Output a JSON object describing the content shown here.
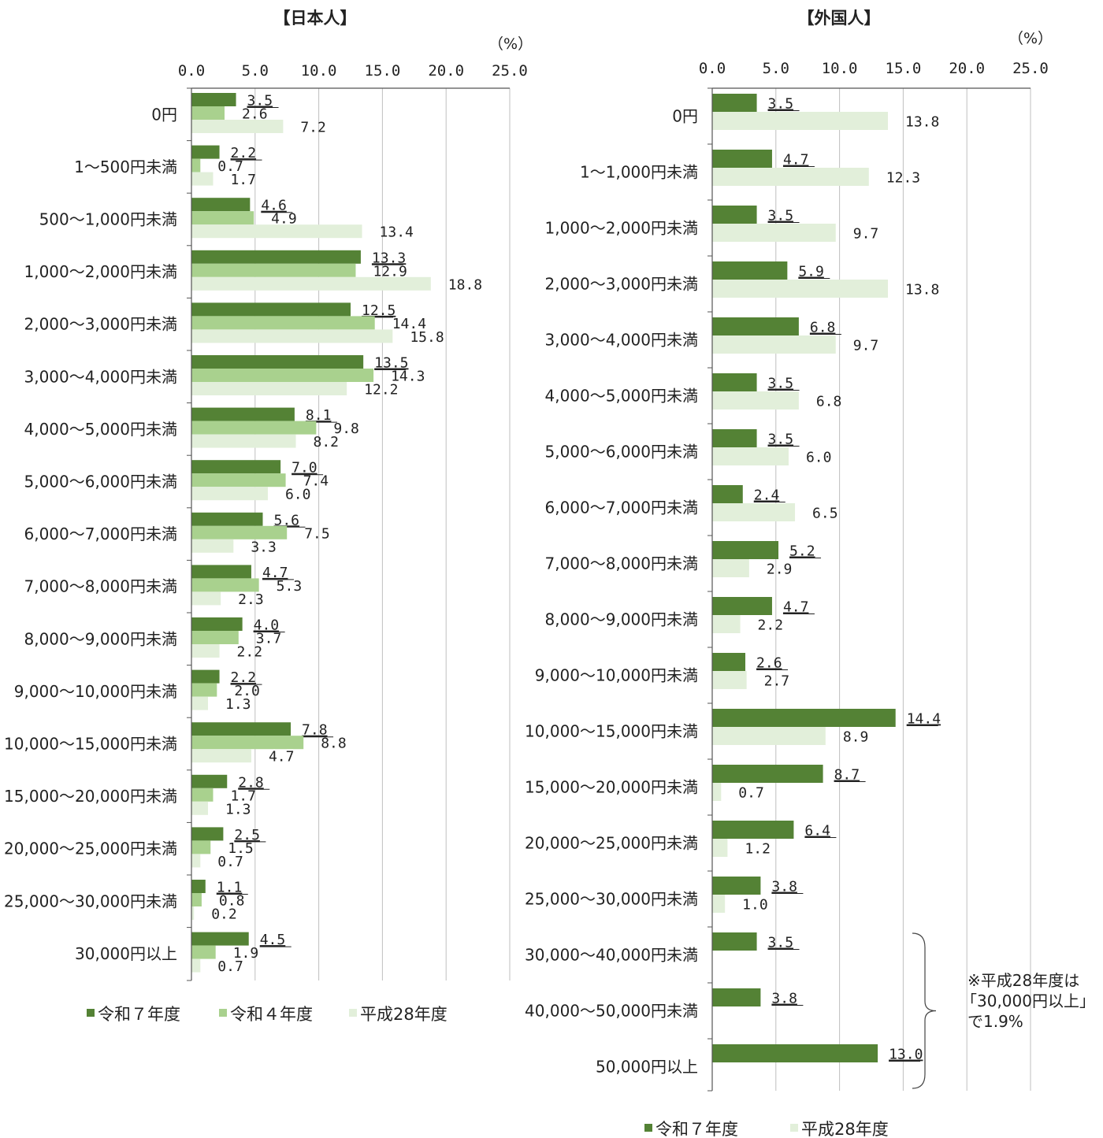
{
  "colors": {
    "r7": "#548235",
    "r4": "#a9d18e",
    "h28": "#e2efda",
    "axis": "#555555",
    "grid": "#bfbfbf"
  },
  "chart_data": [
    {
      "type": "bar",
      "orientation": "horizontal",
      "title": "【日本人】",
      "unit": "（%）",
      "xlim": [
        0,
        25
      ],
      "ticks": [
        "0.0",
        "5.0",
        "10.0",
        "15.0",
        "20.0",
        "25.0"
      ],
      "grid": true,
      "legend_position": "bottom",
      "categories": [
        "0円",
        "1～500円未満",
        "500～1,000円未満",
        "1,000～2,000円未満",
        "2,000～3,000円未満",
        "3,000～4,000円未満",
        "4,000～5,000円未満",
        "5,000～6,000円未満",
        "6,000～7,000円未満",
        "7,000～8,000円未満",
        "8,000～9,000円未満",
        "9,000～10,000円未満",
        "10,000～15,000円未満",
        "15,000～20,000円未満",
        "20,000～25,000円未満",
        "25,000～30,000円未満",
        "30,000円以上"
      ],
      "series": [
        {
          "name": "令和７年度",
          "color_key": "r7",
          "values": [
            3.5,
            2.2,
            4.6,
            13.3,
            12.5,
            13.5,
            8.1,
            7.0,
            5.6,
            4.7,
            4.0,
            2.2,
            7.8,
            2.8,
            2.5,
            1.1,
            4.5
          ],
          "underline": true
        },
        {
          "name": "令和４年度",
          "color_key": "r4",
          "values": [
            2.6,
            0.7,
            4.9,
            12.9,
            14.4,
            14.3,
            9.8,
            7.4,
            7.5,
            5.3,
            3.7,
            2.0,
            8.8,
            1.7,
            1.5,
            0.8,
            1.9
          ]
        },
        {
          "name": "平成28年度",
          "color_key": "h28",
          "values": [
            7.2,
            1.7,
            13.4,
            18.8,
            15.8,
            12.2,
            8.2,
            6.0,
            3.3,
            2.3,
            2.2,
            1.3,
            4.7,
            1.3,
            0.7,
            0.2,
            0.7
          ]
        }
      ]
    },
    {
      "type": "bar",
      "orientation": "horizontal",
      "title": "【外国人】",
      "unit": "（%）",
      "xlim": [
        0,
        25
      ],
      "ticks": [
        "0.0",
        "5.0",
        "10.0",
        "15.0",
        "20.0",
        "25.0"
      ],
      "grid": true,
      "legend_position": "bottom",
      "categories": [
        "0円",
        "1～1,000円未満",
        "1,000～2,000円未満",
        "2,000～3,000円未満",
        "3,000～4,000円未満",
        "4,000～5,000円未満",
        "5,000～6,000円未満",
        "6,000～7,000円未満",
        "7,000～8,000円未満",
        "8,000～9,000円未満",
        "9,000～10,000円未満",
        "10,000～15,000円未満",
        "15,000～20,000円未満",
        "20,000～25,000円未満",
        "25,000～30,000円未満",
        "30,000～40,000円未満",
        "40,000～50,000円未満",
        "50,000円以上"
      ],
      "series": [
        {
          "name": "令和７年度",
          "color_key": "r7",
          "values": [
            3.5,
            4.7,
            3.5,
            5.9,
            6.8,
            3.5,
            3.5,
            2.4,
            5.2,
            4.7,
            2.6,
            14.4,
            8.7,
            6.4,
            3.8,
            3.5,
            3.8,
            13.0
          ],
          "underline": true
        },
        {
          "name": "平成28年度",
          "color_key": "h28",
          "values": [
            13.8,
            12.3,
            9.7,
            13.8,
            9.7,
            6.8,
            6.0,
            6.5,
            2.9,
            2.2,
            2.7,
            8.9,
            0.7,
            1.2,
            1.0,
            null,
            null,
            null
          ]
        }
      ],
      "note": [
        "※平成28年度は",
        "「30,000円以上」",
        "で1.9%"
      ]
    }
  ]
}
